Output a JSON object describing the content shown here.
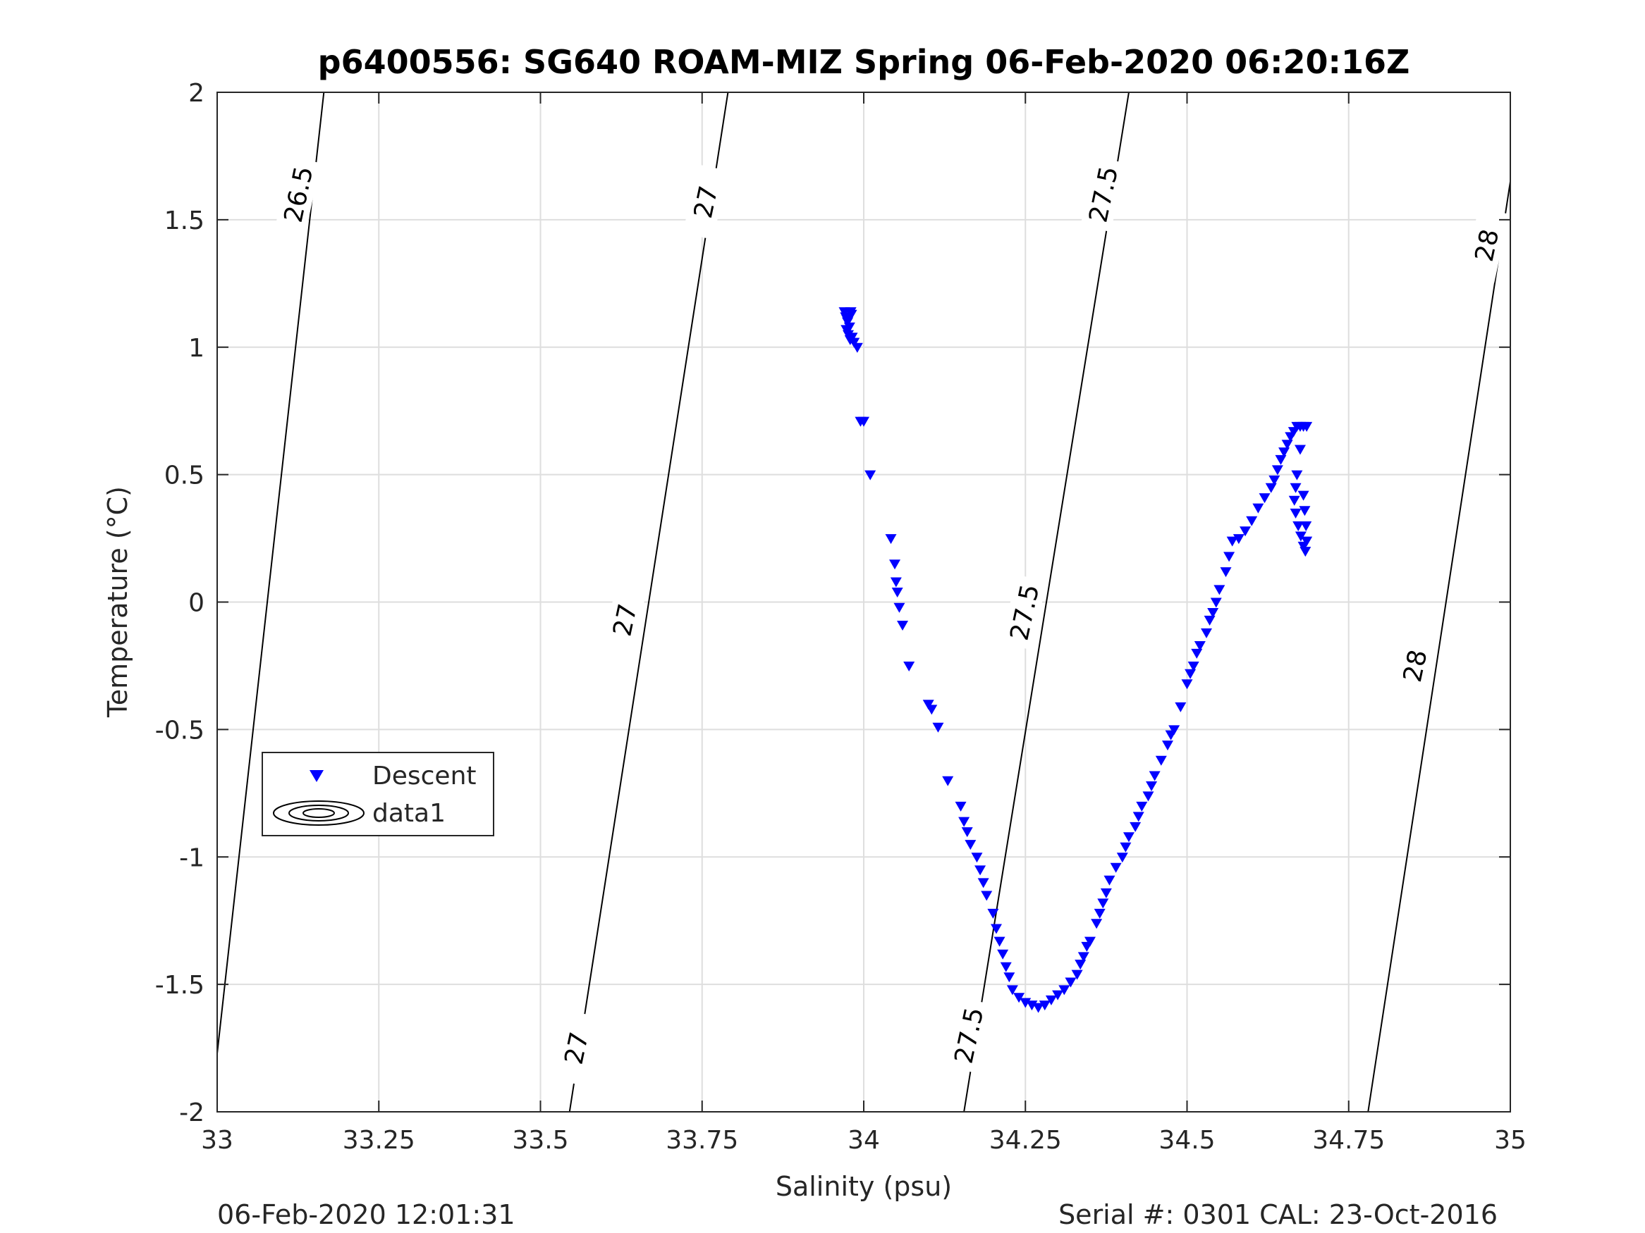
{
  "chart_data": {
    "type": "scatter",
    "title": "p6400556: SG640 ROAM-MIZ Spring 06-Feb-2020 06:20:16Z",
    "xlabel": "Salinity (psu)",
    "ylabel": "Temperature (°C)",
    "xlim": [
      33,
      35
    ],
    "ylim": [
      -2,
      2
    ],
    "xticks": [
      33,
      33.25,
      33.5,
      33.75,
      34,
      34.25,
      34.5,
      34.75,
      35
    ],
    "xtick_labels": [
      "33",
      "33.25",
      "33.5",
      "33.75",
      "34",
      "34.25",
      "34.5",
      "34.75",
      "35"
    ],
    "yticks": [
      -2,
      -1.5,
      -1,
      -0.5,
      0,
      0.5,
      1,
      1.5,
      2
    ],
    "ytick_labels": [
      "-2",
      "-1.5",
      "-1",
      "-0.5",
      "0",
      "0.5",
      "1",
      "1.5",
      "2"
    ],
    "grid": true,
    "legend": {
      "location": "left",
      "entries": [
        "Descent",
        "data1"
      ]
    },
    "series": [
      {
        "name": "Descent",
        "marker": "triangle-down",
        "color": "#0000ff",
        "x": [
          33.97,
          33.972,
          33.975,
          33.978,
          33.98,
          33.973,
          33.976,
          33.979,
          33.981,
          33.974,
          33.982,
          33.985,
          33.99,
          33.995,
          34.0,
          34.01,
          34.042,
          34.048,
          34.05,
          34.052,
          34.055,
          34.06,
          34.07,
          34.1,
          34.105,
          34.115,
          34.13,
          34.15,
          34.155,
          34.16,
          34.165,
          34.175,
          34.18,
          34.185,
          34.19,
          34.2,
          34.205,
          34.21,
          34.215,
          34.22,
          34.225,
          34.23,
          34.24,
          34.25,
          34.26,
          34.27,
          34.28,
          34.29,
          34.3,
          34.31,
          34.32,
          34.33,
          34.335,
          34.34,
          34.345,
          34.35,
          34.36,
          34.365,
          34.37,
          34.375,
          34.38,
          34.39,
          34.4,
          34.405,
          34.41,
          34.42,
          34.425,
          34.43,
          34.44,
          34.445,
          34.45,
          34.46,
          34.47,
          34.475,
          34.48,
          34.49,
          34.5,
          34.505,
          34.51,
          34.515,
          34.52,
          34.53,
          34.535,
          34.54,
          34.545,
          34.55,
          34.56,
          34.565,
          34.57,
          34.58,
          34.59,
          34.6,
          34.61,
          34.62,
          34.63,
          34.635,
          34.64,
          34.645,
          34.65,
          34.655,
          34.66,
          34.665,
          34.67,
          34.675,
          34.68,
          34.685,
          34.675,
          34.67,
          34.668,
          34.666,
          34.668,
          34.672,
          34.676,
          34.68,
          34.683,
          34.685,
          34.684,
          34.682,
          34.68
        ],
        "y": [
          1.14,
          1.12,
          1.1,
          1.08,
          1.14,
          1.07,
          1.05,
          1.03,
          1.13,
          1.11,
          1.04,
          1.02,
          1.0,
          0.71,
          0.71,
          0.5,
          0.25,
          0.15,
          0.08,
          0.04,
          -0.02,
          -0.09,
          -0.25,
          -0.4,
          -0.42,
          -0.49,
          -0.7,
          -0.8,
          -0.86,
          -0.9,
          -0.95,
          -1.0,
          -1.05,
          -1.1,
          -1.15,
          -1.22,
          -1.28,
          -1.33,
          -1.38,
          -1.43,
          -1.47,
          -1.52,
          -1.55,
          -1.57,
          -1.58,
          -1.59,
          -1.58,
          -1.56,
          -1.54,
          -1.52,
          -1.49,
          -1.46,
          -1.42,
          -1.39,
          -1.35,
          -1.33,
          -1.26,
          -1.22,
          -1.18,
          -1.14,
          -1.09,
          -1.04,
          -1.0,
          -0.96,
          -0.92,
          -0.88,
          -0.84,
          -0.8,
          -0.76,
          -0.72,
          -0.68,
          -0.62,
          -0.56,
          -0.52,
          -0.5,
          -0.41,
          -0.32,
          -0.28,
          -0.25,
          -0.2,
          -0.17,
          -0.12,
          -0.07,
          -0.04,
          0.0,
          0.05,
          0.12,
          0.18,
          0.24,
          0.25,
          0.28,
          0.32,
          0.37,
          0.41,
          0.45,
          0.48,
          0.52,
          0.56,
          0.59,
          0.62,
          0.65,
          0.67,
          0.69,
          0.69,
          0.69,
          0.69,
          0.6,
          0.5,
          0.45,
          0.4,
          0.35,
          0.3,
          0.26,
          0.22,
          0.2,
          0.24,
          0.3,
          0.36,
          0.42
        ]
      }
    ],
    "contours": [
      {
        "level": "26.5",
        "x_at_top": 33.165,
        "x_at_bottom": 32.99
      },
      {
        "level": "27",
        "x_at_top": 33.79,
        "x_at_bottom": 33.545
      },
      {
        "level": "27.5",
        "x_at_top": 34.41,
        "x_at_bottom": 34.155
      },
      {
        "level": "28",
        "x_at_top": 35.0,
        "x_at_bottom": 34.78,
        "y_at_right": 1.65
      }
    ],
    "contour_labels": [
      {
        "text": "26.5",
        "s": 33.125,
        "t": 1.6,
        "angle": -78
      },
      {
        "text": "27",
        "s": 33.755,
        "t": 1.57,
        "angle": -78
      },
      {
        "text": "27",
        "s": 33.63,
        "t": -0.07,
        "angle": -78
      },
      {
        "text": "27",
        "s": 33.555,
        "t": -1.75,
        "angle": -78
      },
      {
        "text": "27.5",
        "s": 34.37,
        "t": 1.6,
        "angle": -78
      },
      {
        "text": "27.5",
        "s": 34.248,
        "t": -0.04,
        "angle": -78
      },
      {
        "text": "27.5",
        "s": 34.162,
        "t": -1.7,
        "angle": -78
      },
      {
        "text": "28",
        "s": 34.963,
        "t": 1.4,
        "angle": -78
      },
      {
        "text": "28",
        "s": 34.852,
        "t": -0.25,
        "angle": -78
      }
    ]
  },
  "footer": {
    "left": "06-Feb-2020 12:01:31",
    "right": "Serial #: 0301  CAL: 23-Oct-2016"
  }
}
